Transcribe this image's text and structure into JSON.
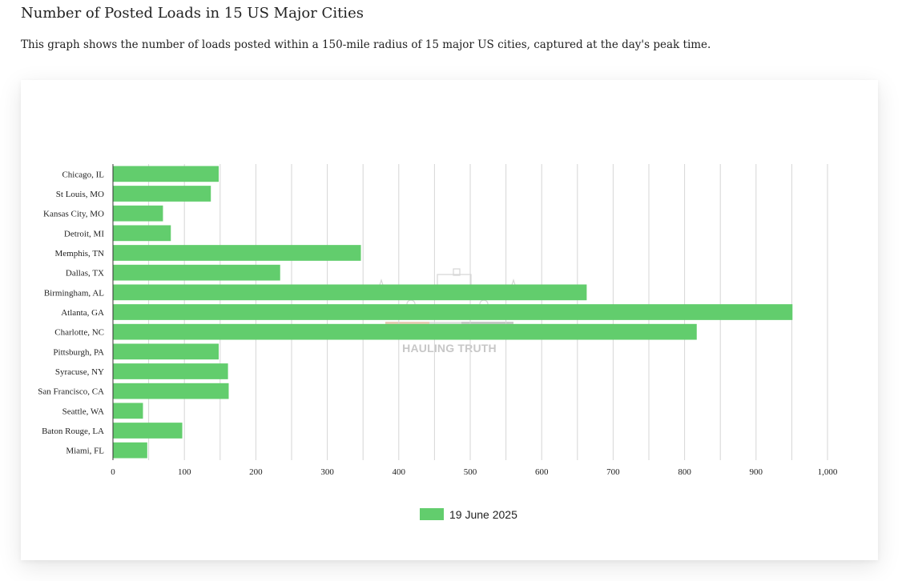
{
  "page": {
    "title": "Number of Posted Loads in 15 US Major Cities",
    "description": "This graph shows the number of loads posted within a 150-mile radius of 15 major US cities, captured at the day's peak time."
  },
  "chart_data": {
    "type": "bar",
    "orientation": "horizontal",
    "categories": [
      "Chicago, IL",
      "St Louis, MO",
      "Kansas City, MO",
      "Detroit, MI",
      "Memphis, TN",
      "Dallas, TX",
      "Birmingham, AL",
      "Atlanta, GA",
      "Charlotte, NC",
      "Pittsburgh, PA",
      "Syracuse, NY",
      "San Francisco, CA",
      "Seattle, WA",
      "Baton Rouge, LA",
      "Miami, FL"
    ],
    "series": [
      {
        "name": "19 June 2025",
        "color": "#62cd6d",
        "values": [
          148,
          137,
          70,
          81,
          347,
          234,
          663,
          951,
          817,
          148,
          161,
          162,
          42,
          97,
          48
        ]
      }
    ],
    "xlim": [
      0,
      1000
    ],
    "xticks": [
      0,
      100,
      200,
      300,
      400,
      500,
      600,
      700,
      800,
      900,
      1000
    ],
    "xtick_labels": [
      "0",
      "100",
      "200",
      "300",
      "400",
      "500",
      "600",
      "700",
      "800",
      "900",
      "1,000"
    ],
    "grid": true,
    "legend_position": "bottom",
    "watermark_text": "HAULING TRUTH"
  }
}
